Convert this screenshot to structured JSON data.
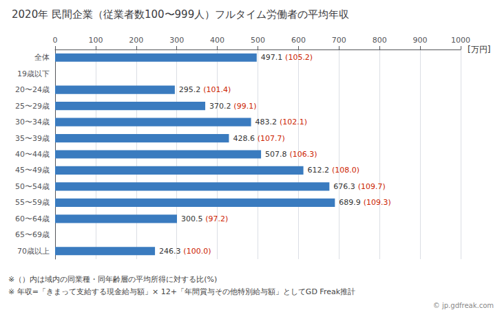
{
  "chart_data": {
    "type": "bar",
    "orientation": "horizontal",
    "title": "2020年 民間企業（従業者数100〜999人）フルタイム労働者の平均年収",
    "xlabel": "[万円]",
    "categories": [
      "全体",
      "19歳以下",
      "20〜24歳",
      "25〜29歳",
      "30〜34歳",
      "35〜39歳",
      "40〜44歳",
      "45〜49歳",
      "50〜54歳",
      "55〜59歳",
      "60〜64歳",
      "65〜69歳",
      "70歳以上"
    ],
    "values": [
      497.1,
      0,
      295.2,
      370.2,
      483.2,
      428.6,
      507.8,
      612.2,
      676.3,
      689.9,
      300.5,
      0,
      246.3
    ],
    "value_labels": [
      "497.1",
      null,
      "295.2",
      "370.2",
      "483.2",
      "428.6",
      "507.8",
      "612.2",
      "676.3",
      "689.9",
      "300.5",
      null,
      "246.3"
    ],
    "ratio_labels": [
      "(105.2)",
      null,
      "(101.4)",
      "(99.1)",
      "(102.1)",
      "(107.7)",
      "(106.3)",
      "(108.0)",
      "(109.7)",
      "(109.3)",
      "(97.2)",
      null,
      "(100.0)"
    ],
    "color": "#3a7bbf",
    "xlim": [
      0,
      1000
    ],
    "xticks": [
      0,
      100,
      200,
      300,
      400,
      500,
      600,
      700,
      800,
      900,
      1000
    ],
    "grid": true,
    "data_labels": true,
    "notes": [
      "※（）内は域内の同業種・同年齢層の平均所得に対する比(%)",
      "※ 年収=「きまって支給する現金給与額」× 12+「年間賞与その他特別給与額」としてGD Freak推計"
    ],
    "source": "© jp.gdfreak.com"
  }
}
